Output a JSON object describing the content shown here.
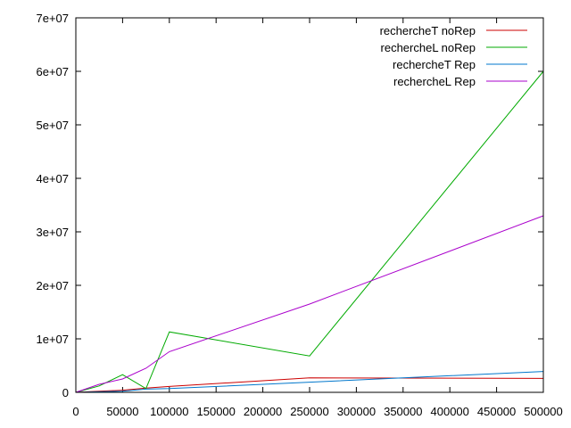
{
  "chart_data": {
    "type": "line",
    "title": "",
    "xlabel": "",
    "ylabel": "",
    "xlim": [
      0,
      500000
    ],
    "ylim": [
      0,
      70000000
    ],
    "grid": false,
    "legend_position": "top-right",
    "x_ticks": [
      {
        "value": 0,
        "label": "0"
      },
      {
        "value": 50000,
        "label": "50000"
      },
      {
        "value": 100000,
        "label": "100000"
      },
      {
        "value": 150000,
        "label": "150000"
      },
      {
        "value": 200000,
        "label": "200000"
      },
      {
        "value": 250000,
        "label": "250000"
      },
      {
        "value": 300000,
        "label": "300000"
      },
      {
        "value": 350000,
        "label": "350000"
      },
      {
        "value": 400000,
        "label": "400000"
      },
      {
        "value": 450000,
        "label": "450000"
      },
      {
        "value": 500000,
        "label": "500000"
      }
    ],
    "y_ticks": [
      {
        "value": 0,
        "label": "0"
      },
      {
        "value": 10000000,
        "label": "1e+07"
      },
      {
        "value": 20000000,
        "label": "2e+07"
      },
      {
        "value": 30000000,
        "label": "3e+07"
      },
      {
        "value": 40000000,
        "label": "4e+07"
      },
      {
        "value": 50000000,
        "label": "5e+07"
      },
      {
        "value": 60000000,
        "label": "6e+07"
      },
      {
        "value": 70000000,
        "label": "7e+07"
      }
    ],
    "series": [
      {
        "name": "rechercheT noRep",
        "color": "#cc0000",
        "points": [
          [
            0,
            0
          ],
          [
            25000,
            200000
          ],
          [
            50000,
            400000
          ],
          [
            75000,
            800000
          ],
          [
            100000,
            1100000
          ],
          [
            250000,
            2700000
          ],
          [
            500000,
            2600000
          ]
        ]
      },
      {
        "name": "rechercheL noRep",
        "color": "#00aa00",
        "points": [
          [
            0,
            0
          ],
          [
            25000,
            1200000
          ],
          [
            50000,
            3300000
          ],
          [
            75000,
            700000
          ],
          [
            100000,
            11300000
          ],
          [
            250000,
            6800000
          ],
          [
            500000,
            60000000
          ]
        ]
      },
      {
        "name": "rechercheT Rep",
        "color": "#0077cc",
        "points": [
          [
            0,
            0
          ],
          [
            25000,
            100000
          ],
          [
            50000,
            200000
          ],
          [
            75000,
            600000
          ],
          [
            100000,
            700000
          ],
          [
            250000,
            1900000
          ],
          [
            500000,
            3900000
          ]
        ]
      },
      {
        "name": "rechercheL Rep",
        "color": "#aa00cc",
        "points": [
          [
            0,
            0
          ],
          [
            25000,
            1500000
          ],
          [
            50000,
            2500000
          ],
          [
            75000,
            4500000
          ],
          [
            100000,
            7600000
          ],
          [
            250000,
            16500000
          ],
          [
            500000,
            33000000
          ]
        ]
      }
    ]
  }
}
